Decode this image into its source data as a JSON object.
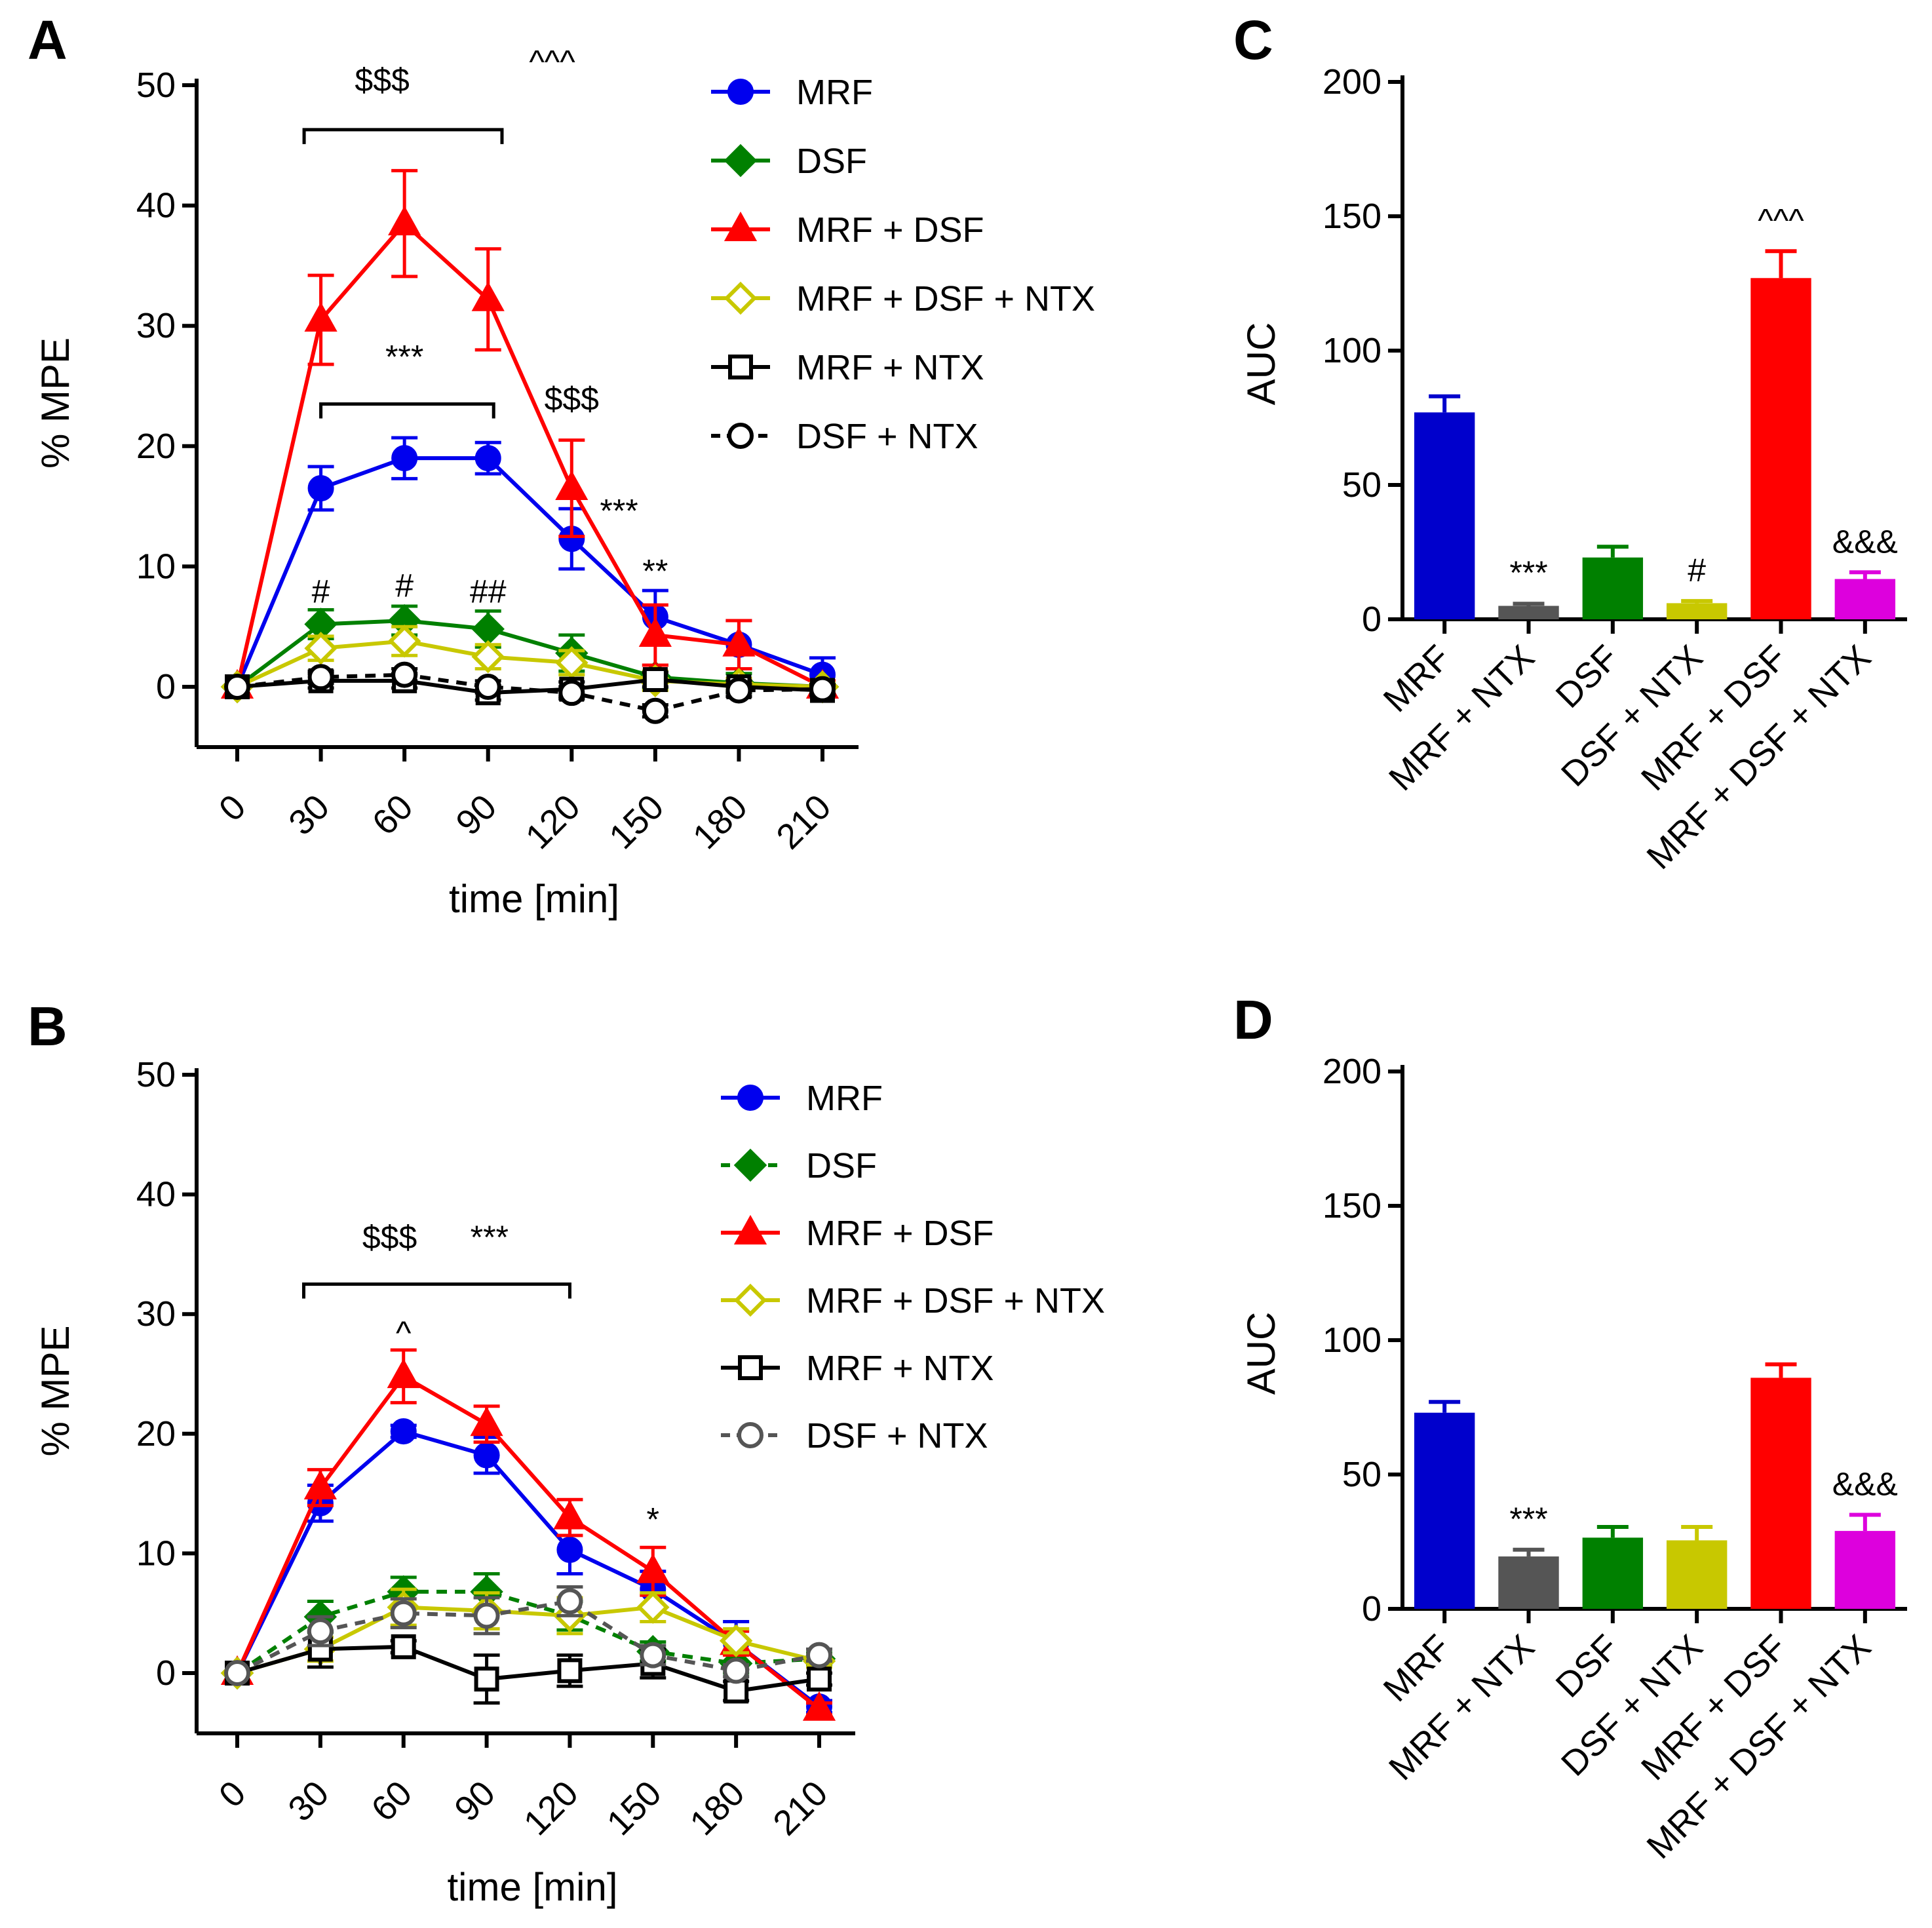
{
  "chart_data": [
    {
      "panel": "A",
      "type": "line",
      "xlabel": "time [min]",
      "ylabel": "% MPE",
      "x": [
        0,
        30,
        60,
        90,
        120,
        150,
        180,
        210
      ],
      "xlim": [
        0,
        210
      ],
      "ylim": [
        -5,
        50
      ],
      "yticks": [
        0,
        10,
        20,
        30,
        40,
        50
      ],
      "series": [
        {
          "name": "MRF",
          "color": "#0000ee",
          "marker": "circle",
          "fill": true,
          "dashed": false,
          "values": [
            0,
            16.5,
            19,
            19,
            12.3,
            5.8,
            3.5,
            1.0
          ],
          "errors": [
            0,
            1.8,
            1.7,
            1.3,
            2.5,
            2.2,
            2.0,
            1.4
          ]
        },
        {
          "name": "DSF",
          "color": "#008000",
          "marker": "diamond",
          "fill": true,
          "dashed": false,
          "values": [
            0,
            5.2,
            5.5,
            4.8,
            2.8,
            0.8,
            0.3,
            0
          ],
          "errors": [
            0,
            1.2,
            1.2,
            1.5,
            1.5,
            1.0,
            0.8,
            0.5
          ]
        },
        {
          "name": "MRF + DSF",
          "color": "#ff0000",
          "marker": "triangle",
          "fill": true,
          "dashed": false,
          "values": [
            0,
            30.5,
            38.5,
            32.2,
            16.5,
            4.3,
            3.5,
            0
          ],
          "errors": [
            0,
            3.7,
            4.4,
            4.2,
            4.0,
            2.5,
            2.0,
            0.5
          ]
        },
        {
          "name": "MRF + DSF + NTX",
          "color": "#c8c800",
          "marker": "diamond",
          "fill": false,
          "dashed": false,
          "values": [
            0,
            3.2,
            3.8,
            2.5,
            2.0,
            0.5,
            0.2,
            0
          ],
          "errors": [
            0,
            1.0,
            1.2,
            1.0,
            1.0,
            0.8,
            0.5,
            0.3
          ]
        },
        {
          "name": "MRF + NTX",
          "color": "#000000",
          "marker": "square",
          "fill": false,
          "dashed": false,
          "values": [
            0,
            0.5,
            0.5,
            -0.5,
            -0.2,
            0.6,
            0,
            -0.3
          ],
          "errors": [
            0,
            0.6,
            0.6,
            0.6,
            0.6,
            0.6,
            0.5,
            0.4
          ]
        },
        {
          "name": "DSF + NTX",
          "color": "#000000",
          "marker": "circle",
          "fill": false,
          "dashed": true,
          "values": [
            0,
            0.8,
            1.0,
            0,
            -0.5,
            -2.0,
            -0.3,
            -0.2
          ],
          "errors": [
            0,
            0.5,
            0.5,
            0.5,
            0.5,
            0.5,
            0.5,
            0.4
          ]
        }
      ],
      "annotations": [
        {
          "text": "$$$",
          "x": 52,
          "y": 49.5
        },
        {
          "text": "^^^",
          "x": 113,
          "y": 51.0
        },
        {
          "text": "***",
          "x": 60,
          "y": 26.5
        },
        {
          "text": "$$$",
          "x": 120,
          "y": 23.0
        },
        {
          "text": "***",
          "x": 137,
          "y": 13.7
        },
        {
          "text": "**",
          "x": 150,
          "y": 8.7
        },
        {
          "text": "#",
          "x": 30,
          "y": 7.0
        },
        {
          "text": "#",
          "x": 60,
          "y": 7.5
        },
        {
          "text": "##",
          "x": 90,
          "y": 7.0
        }
      ],
      "brackets": [
        {
          "x1": 24,
          "x2": 95,
          "y": 46.3
        },
        {
          "x1": 30,
          "x2": 92,
          "y": 23.5
        }
      ]
    },
    {
      "panel": "B",
      "type": "line",
      "xlabel": "time [min]",
      "ylabel": "% MPE",
      "x": [
        0,
        30,
        60,
        90,
        120,
        150,
        180,
        210
      ],
      "xlim": [
        0,
        210
      ],
      "ylim": [
        -5,
        50
      ],
      "yticks": [
        0,
        10,
        20,
        30,
        40,
        50
      ],
      "series": [
        {
          "name": "MRF",
          "color": "#0000ee",
          "marker": "circle",
          "fill": true,
          "dashed": false,
          "values": [
            0,
            14.2,
            20.2,
            18.2,
            10.3,
            7.0,
            2.5,
            -2.8
          ],
          "errors": [
            0,
            1.5,
            0.5,
            1.5,
            2.0,
            1.5,
            1.8,
            0.5
          ]
        },
        {
          "name": "DSF",
          "color": "#008000",
          "marker": "diamond",
          "fill": true,
          "dashed": true,
          "values": [
            0,
            4.7,
            6.8,
            6.8,
            4.8,
            1.8,
            0.8,
            1.2
          ],
          "errors": [
            0,
            1.3,
            1.2,
            1.5,
            1.2,
            0.8,
            0.8,
            0.5
          ]
        },
        {
          "name": "MRF + DSF",
          "color": "#ff0000",
          "marker": "triangle",
          "fill": true,
          "dashed": false,
          "values": [
            0,
            15.5,
            24.8,
            20.8,
            13.0,
            8.5,
            2.5,
            -3.0
          ],
          "errors": [
            0,
            1.5,
            2.2,
            1.5,
            1.5,
            2.0,
            1.0,
            0.5
          ]
        },
        {
          "name": "MRF + DSF + NTX",
          "color": "#c8c800",
          "marker": "diamond",
          "fill": false,
          "dashed": false,
          "values": [
            0,
            2.0,
            5.5,
            5.2,
            4.8,
            5.5,
            2.7,
            1.0
          ],
          "errors": [
            0,
            1.0,
            1.5,
            1.5,
            1.5,
            1.2,
            1.0,
            0.5
          ]
        },
        {
          "name": "MRF + NTX",
          "color": "#000000",
          "marker": "square",
          "fill": false,
          "dashed": false,
          "values": [
            0,
            2.0,
            2.2,
            -0.5,
            0.2,
            0.8,
            -1.5,
            -0.5
          ],
          "errors": [
            0,
            1.5,
            0.5,
            2.0,
            1.3,
            1.2,
            0.8,
            0.5
          ]
        },
        {
          "name": "DSF + NTX",
          "color": "#555555",
          "marker": "circle",
          "fill": false,
          "dashed": true,
          "values": [
            0,
            3.5,
            5.0,
            4.8,
            6.0,
            1.5,
            0.2,
            1.5
          ],
          "errors": [
            0,
            1.2,
            1.2,
            1.5,
            1.2,
            0.8,
            0.5,
            0.5
          ]
        }
      ],
      "annotations": [
        {
          "text": "$$$",
          "x": 55,
          "y": 35.5
        },
        {
          "text": "***",
          "x": 91,
          "y": 35.5
        },
        {
          "text": "^",
          "x": 60,
          "y": 27.5
        },
        {
          "text": "*",
          "x": 150,
          "y": 11.9
        }
      ],
      "brackets": [
        {
          "x1": 24,
          "x2": 120,
          "y": 32.5
        }
      ]
    },
    {
      "panel": "C",
      "type": "bar",
      "ylabel": "AUC",
      "ylim": [
        0,
        200
      ],
      "yticks": [
        0,
        50,
        100,
        150,
        200
      ],
      "categories": [
        "MRF",
        "MRF + NTX",
        "DSF",
        "DSF + NTX",
        "MRF + DSF",
        "MRF + DSF + NTX"
      ],
      "values": [
        77,
        5,
        23,
        6,
        127,
        15
      ],
      "errors": [
        6,
        0.8,
        4,
        0.8,
        10,
        2.5
      ],
      "colors": [
        "#0000cc",
        "#555555",
        "#008000",
        "#c8c800",
        "#ff0000",
        "#dd00dd"
      ],
      "labels": [
        "",
        "***",
        "",
        "#",
        "^^^",
        "&&&"
      ]
    },
    {
      "panel": "D",
      "type": "bar",
      "ylabel": "AUC",
      "ylim": [
        0,
        200
      ],
      "yticks": [
        0,
        50,
        100,
        150,
        200
      ],
      "categories": [
        "MRF",
        "MRF + NTX",
        "DSF",
        "DSF + NTX",
        "MRF + DSF",
        "MRF + DSF + NTX"
      ],
      "values": [
        73,
        19.5,
        26.5,
        25.5,
        86,
        29
      ],
      "errors": [
        4,
        2.5,
        4,
        5,
        5,
        6
      ],
      "colors": [
        "#0000cc",
        "#555555",
        "#008000",
        "#c8c800",
        "#ff0000",
        "#dd00dd"
      ],
      "labels": [
        "",
        "***",
        "",
        "",
        "",
        "&&&"
      ]
    }
  ]
}
